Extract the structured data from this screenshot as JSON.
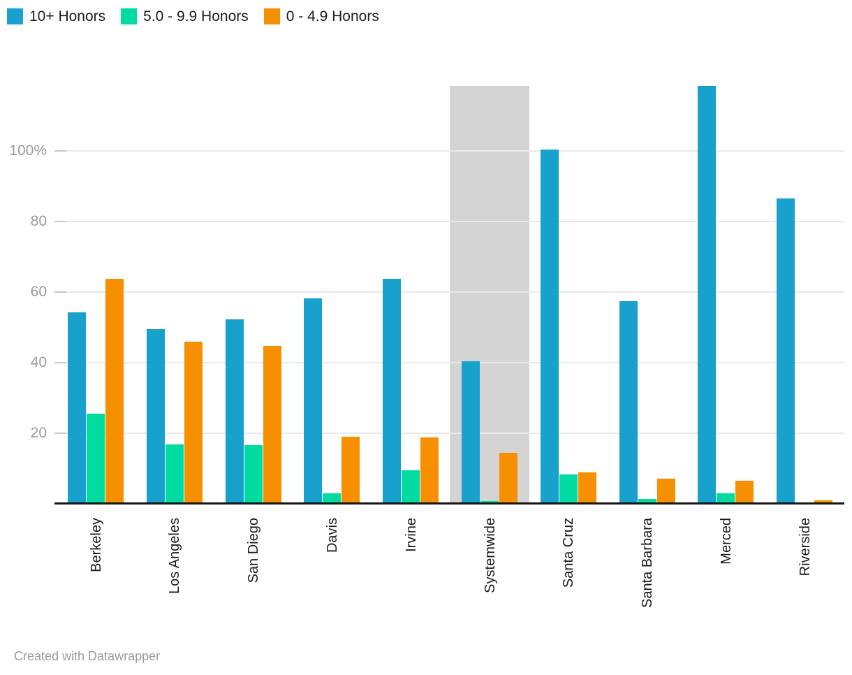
{
  "chart_data": {
    "type": "bar",
    "title": "",
    "xlabel": "",
    "ylabel": "",
    "grid": true,
    "legend_position": "top-left",
    "categories": [
      "Berkeley",
      "Los Angeles",
      "San Diego",
      "Davis",
      "Irvine",
      "Systemwide",
      "Santa Cruz",
      "Santa Barbara",
      "Merced",
      "Riverside"
    ],
    "series": [
      {
        "name": "10+ Honors",
        "color": "#18a1cd",
        "values": [
          54.2,
          49.5,
          52.2,
          58.2,
          63.8,
          40.5,
          100.4,
          57.4,
          118.5,
          86.5
        ]
      },
      {
        "name": "5.0 - 9.9 Honors",
        "color": "#00dba2",
        "values": [
          25.5,
          16.8,
          16.6,
          3.0,
          9.6,
          0.8,
          8.3,
          1.4,
          3.0,
          0
        ]
      },
      {
        "name": "0 - 4.9 Honors",
        "color": "#f79000",
        "values": [
          63.8,
          46.0,
          44.8,
          19.0,
          18.8,
          14.4,
          8.9,
          7.1,
          6.5,
          1.0
        ]
      }
    ],
    "y_ticks": [
      {
        "value": 100,
        "label": "100%"
      },
      {
        "value": 80,
        "label": "80"
      },
      {
        "value": 60,
        "label": "60"
      },
      {
        "value": 40,
        "label": "40"
      },
      {
        "value": 20,
        "label": "20"
      }
    ],
    "ylim": [
      0,
      121
    ],
    "highlight": {
      "category": "Systemwide",
      "color": "#d4d4d4"
    }
  },
  "footer": {
    "credit": "Created with Datawrapper"
  },
  "colors": {
    "gridline": "#e9e9e9",
    "tick": "#c9c9c9",
    "axis_label": "#9a9a9a",
    "category_label": "#1a1a1a",
    "baseline": "#161616",
    "credit": "#9b9b9b",
    "background": "#ffffff"
  }
}
